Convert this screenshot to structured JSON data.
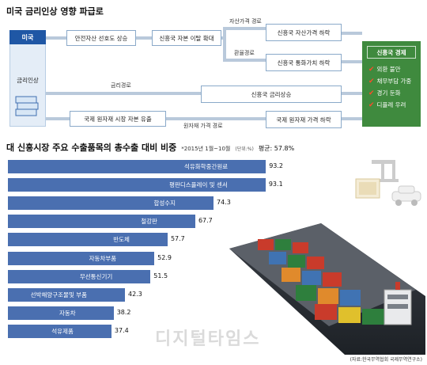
{
  "title": "미국 금리인상 영향 파급로",
  "flow": {
    "us_label": "미국",
    "rate_hike_label": "금리인상",
    "box_safe_asset": "안전자산 선호도 상승",
    "box_capital_outflow": "신흥국 자본 이탈 확대",
    "path_asset_price": "자산가격 경로",
    "box_asset_price_down": "신흥국 자산가격 하락",
    "path_exchange": "환율경로",
    "box_currency_down": "신흥국 통화가치 하락",
    "path_interest": "금리경로",
    "box_rate_up": "신흥국 금리상승",
    "box_commodity_outflow": "국제 원자재 시장 자본 유출",
    "path_commodity": "원자재 가격 경로",
    "box_commodity_down": "국제 원자재 가격 하락",
    "panel_title": "신흥국 경제",
    "panel_items": [
      "외환 불안",
      "채무부담 가중",
      "경기 둔화",
      "디플레 우려"
    ]
  },
  "chart_title": "대 신흥시장 주요 수출품목의 총수출 대비 비중",
  "chart_note": "*2015년 1월~10월",
  "chart_unit": "(단위:%)",
  "chart_avg": "평균: 57.8%",
  "source": "(자료:한국무역협회 국제무역연구소)",
  "watermark": "디지털타임스",
  "chart_data": {
    "type": "bar",
    "title": "대 신흥시장 주요 수출품목의 총수출 대비 비중",
    "categories": [
      "석유화학중간원료",
      "평판디스플레이 및 센서",
      "합성수지",
      "철강판",
      "반도체",
      "자동차부품",
      "무선통신기기",
      "선박해양구조물및 부품",
      "자동차",
      "석유제품"
    ],
    "values": [
      93.2,
      93.1,
      74.3,
      67.7,
      57.7,
      52.9,
      51.5,
      42.3,
      38.2,
      37.4
    ],
    "value_labels": [
      "93.2",
      "93.1",
      "74.3",
      "67.7",
      "57.7",
      "52.9",
      "51.5",
      "42.3",
      "38.2",
      "37.4"
    ],
    "xlim": [
      0,
      100
    ],
    "orientation": "horizontal",
    "color": "#4a6fb0"
  }
}
